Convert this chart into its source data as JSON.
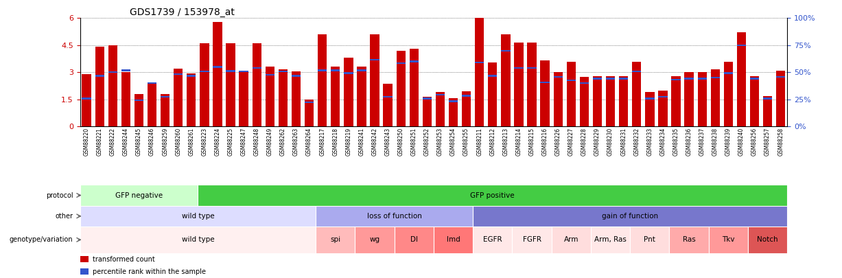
{
  "title": "GDS1739 / 153978_at",
  "samples": [
    "GSM88220",
    "GSM88221",
    "GSM88222",
    "GSM88244",
    "GSM88245",
    "GSM88246",
    "GSM88259",
    "GSM88260",
    "GSM88261",
    "GSM88223",
    "GSM88224",
    "GSM88225",
    "GSM88247",
    "GSM88248",
    "GSM88249",
    "GSM88262",
    "GSM88263",
    "GSM88264",
    "GSM88217",
    "GSM88218",
    "GSM88219",
    "GSM88241",
    "GSM88242",
    "GSM88243",
    "GSM88250",
    "GSM88251",
    "GSM88252",
    "GSM88253",
    "GSM88254",
    "GSM88255",
    "GSM88211",
    "GSM88212",
    "GSM88213",
    "GSM88214",
    "GSM88215",
    "GSM88216",
    "GSM88226",
    "GSM88227",
    "GSM88228",
    "GSM88229",
    "GSM88230",
    "GSM88231",
    "GSM88232",
    "GSM88233",
    "GSM88234",
    "GSM88235",
    "GSM88236",
    "GSM88237",
    "GSM88238",
    "GSM88239",
    "GSM88240",
    "GSM88256",
    "GSM88257",
    "GSM88258"
  ],
  "bar_heights": [
    2.9,
    4.4,
    4.5,
    3.0,
    1.8,
    2.45,
    1.8,
    3.2,
    2.95,
    4.6,
    5.8,
    4.6,
    3.05,
    4.6,
    3.3,
    3.15,
    3.05,
    1.5,
    5.1,
    3.3,
    3.8,
    3.3,
    5.1,
    2.35,
    4.2,
    4.3,
    1.65,
    1.9,
    1.55,
    1.95,
    6.0,
    3.55,
    5.1,
    4.65,
    4.65,
    3.65,
    3.0,
    3.6,
    2.75,
    2.8,
    2.8,
    2.8,
    3.6,
    1.9,
    2.0,
    2.8,
    3.0,
    3.0,
    3.15,
    3.6,
    5.2,
    2.8,
    1.7,
    3.1
  ],
  "blue_heights": [
    1.55,
    2.8,
    3.0,
    3.1,
    1.45,
    2.4,
    1.65,
    2.9,
    2.8,
    3.05,
    3.3,
    3.07,
    3.05,
    3.25,
    2.85,
    3.05,
    2.8,
    1.35,
    3.1,
    3.1,
    2.95,
    3.1,
    3.7,
    1.65,
    3.5,
    3.6,
    1.55,
    1.75,
    1.4,
    1.7,
    3.55,
    2.8,
    4.2,
    3.25,
    3.25,
    2.45,
    2.75,
    2.55,
    2.4,
    2.65,
    2.65,
    2.65,
    3.05,
    1.55,
    1.65,
    2.6,
    2.65,
    2.65,
    2.7,
    2.95,
    4.5,
    2.65,
    1.55,
    2.75
  ],
  "ylim_left": [
    0,
    6
  ],
  "ylim_right": [
    0,
    100
  ],
  "yticks_left": [
    0,
    1.5,
    3.0,
    4.5,
    6.0
  ],
  "ytick_labels_left": [
    "0",
    "1.5",
    "3",
    "4.5",
    "6"
  ],
  "yticks_right": [
    0,
    25,
    50,
    75,
    100
  ],
  "ytick_labels_right": [
    "0%",
    "25%",
    "50%",
    "75%",
    "100%"
  ],
  "bar_color": "#cc0000",
  "blue_color": "#3355cc",
  "bg_color": "#ffffff",
  "protocol_row": {
    "label": "protocol",
    "segments": [
      {
        "text": "GFP negative",
        "start": 0,
        "end": 9,
        "color": "#ccffcc"
      },
      {
        "text": "GFP positive",
        "start": 9,
        "end": 54,
        "color": "#44cc44"
      }
    ]
  },
  "other_row": {
    "label": "other",
    "segments": [
      {
        "text": "wild type",
        "start": 0,
        "end": 18,
        "color": "#ddddff"
      },
      {
        "text": "loss of function",
        "start": 18,
        "end": 30,
        "color": "#aaaaee"
      },
      {
        "text": "gain of function",
        "start": 30,
        "end": 54,
        "color": "#7777cc"
      }
    ]
  },
  "genotype_row": {
    "label": "genotype/variation",
    "segments": [
      {
        "text": "wild type",
        "start": 0,
        "end": 18,
        "color": "#fff0f0"
      },
      {
        "text": "spi",
        "start": 18,
        "end": 21,
        "color": "#ffbbbb"
      },
      {
        "text": "wg",
        "start": 21,
        "end": 24,
        "color": "#ff9999"
      },
      {
        "text": "Dl",
        "start": 24,
        "end": 27,
        "color": "#ff8888"
      },
      {
        "text": "lmd",
        "start": 27,
        "end": 30,
        "color": "#ff7777"
      },
      {
        "text": "EGFR",
        "start": 30,
        "end": 33,
        "color": "#ffe8e8"
      },
      {
        "text": "FGFR",
        "start": 33,
        "end": 36,
        "color": "#ffe8e8"
      },
      {
        "text": "Arm",
        "start": 36,
        "end": 39,
        "color": "#ffdddd"
      },
      {
        "text": "Arm, Ras",
        "start": 39,
        "end": 42,
        "color": "#ffe8e8"
      },
      {
        "text": "Pnt",
        "start": 42,
        "end": 45,
        "color": "#ffdddd"
      },
      {
        "text": "Ras",
        "start": 45,
        "end": 48,
        "color": "#ffaaaa"
      },
      {
        "text": "Tkv",
        "start": 48,
        "end": 51,
        "color": "#ff9999"
      },
      {
        "text": "Notch",
        "start": 51,
        "end": 54,
        "color": "#dd5555"
      }
    ]
  },
  "legend_items": [
    {
      "label": "transformed count",
      "color": "#cc0000"
    },
    {
      "label": "percentile rank within the sample",
      "color": "#3355cc"
    }
  ]
}
